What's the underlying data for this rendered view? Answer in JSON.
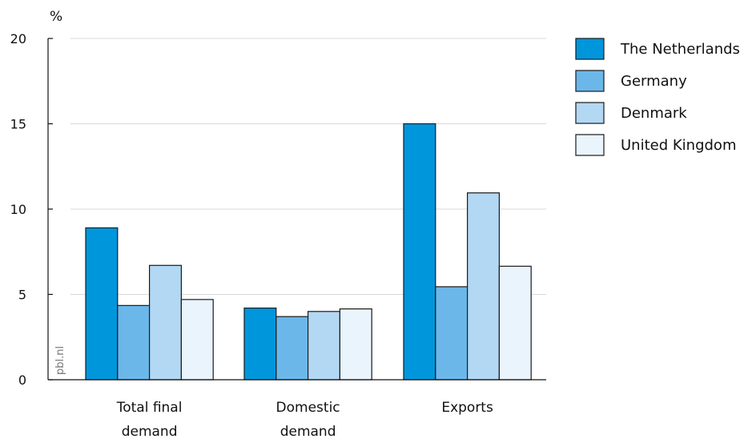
{
  "chart_data": {
    "type": "bar",
    "unit_label": "%",
    "categories": [
      [
        "Total final",
        "demand"
      ],
      [
        "Domestic",
        "demand"
      ],
      [
        "Exports"
      ]
    ],
    "series": [
      {
        "name": "The Netherlands",
        "color": "#0096dc",
        "values": [
          8.9,
          4.2,
          15.0
        ]
      },
      {
        "name": "Germany",
        "color": "#6bb7ea",
        "values": [
          4.35,
          3.7,
          5.45
        ]
      },
      {
        "name": "Denmark",
        "color": "#b3d8f4",
        "values": [
          6.7,
          4.0,
          10.95
        ]
      },
      {
        "name": "United Kingdom",
        "color": "#eaf4fd",
        "values": [
          4.7,
          4.15,
          6.65
        ]
      }
    ],
    "ylim": [
      0,
      20
    ],
    "yticks": [
      0,
      5,
      10,
      15,
      20
    ],
    "grid": true,
    "legend_position": "right",
    "watermark": "pbl.nl"
  }
}
